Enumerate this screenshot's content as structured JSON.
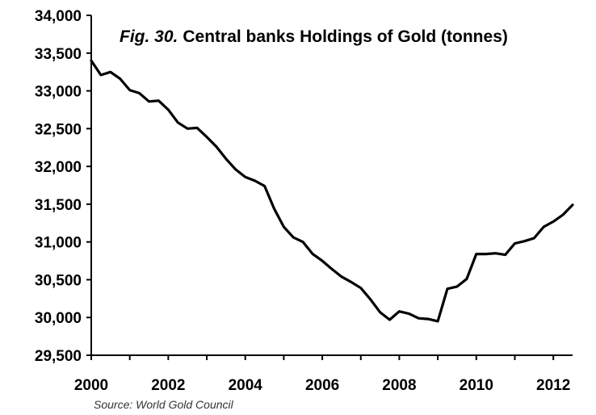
{
  "chart_data": {
    "type": "line",
    "title_prefix": "Fig. 30.",
    "title": "Central banks Holdings of Gold (tonnes)",
    "source": "Source: World Gold Council",
    "xlabel": "",
    "ylabel": "",
    "xlim": [
      2000,
      2012.5
    ],
    "ylim": [
      29500,
      34000
    ],
    "x_ticks": [
      "2000",
      "2002",
      "2004",
      "2006",
      "2008",
      "2010",
      "2012"
    ],
    "y_ticks": [
      "29,500",
      "30,000",
      "30,500",
      "31,000",
      "31,500",
      "32,000",
      "32,500",
      "33,000",
      "33,500",
      "34,000"
    ],
    "grid": false,
    "legend": "none",
    "line_color": "#000000",
    "series": [
      {
        "x": [
          2000.0,
          2000.25,
          2000.5,
          2000.75,
          2001.0,
          2001.25,
          2001.5,
          2001.75,
          2002.0,
          2002.25,
          2002.5,
          2002.75,
          2003.0,
          2003.25,
          2003.5,
          2003.75,
          2004.0,
          2004.25,
          2004.5,
          2004.75,
          2005.0,
          2005.25,
          2005.5,
          2005.75,
          2006.0,
          2006.25,
          2006.5,
          2006.75,
          2007.0,
          2007.25,
          2007.5,
          2007.75,
          2008.0,
          2008.25,
          2008.5,
          2008.75,
          2009.0,
          2009.25,
          2009.5,
          2009.75,
          2010.0,
          2010.25,
          2010.5,
          2010.75,
          2011.0,
          2011.25,
          2011.5,
          2011.75,
          2012.0,
          2012.25,
          2012.5
        ],
        "values": [
          33400,
          33210,
          33250,
          33160,
          33010,
          32970,
          32860,
          32870,
          32750,
          32580,
          32500,
          32510,
          32390,
          32260,
          32100,
          31960,
          31860,
          31810,
          31740,
          31440,
          31200,
          31060,
          31000,
          30840,
          30750,
          30640,
          30540,
          30470,
          30390,
          30240,
          30070,
          29970,
          30080,
          30050,
          29990,
          29980,
          29950,
          30380,
          30410,
          30510,
          30840,
          30840,
          30850,
          30830,
          30980,
          31010,
          31050,
          31200,
          31270,
          31360,
          31490
        ]
      }
    ]
  }
}
